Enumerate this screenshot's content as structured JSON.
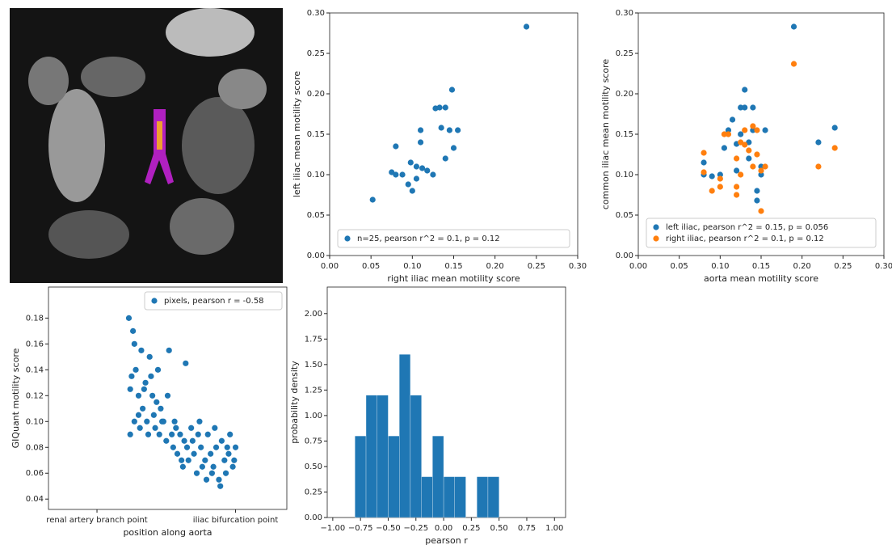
{
  "chart_data": [
    {
      "type": "scatter",
      "x_label": "right iliac mean motility score",
      "y_label": "left iliac mean motility score",
      "xlim": [
        0,
        0.3
      ],
      "ylim": [
        0,
        0.3
      ],
      "xticks": [
        {
          "value": 0,
          "label": "0.00"
        },
        0.05,
        {
          "value": 0.1,
          "label": "0.10"
        },
        0.15,
        {
          "value": 0.2,
          "label": "0.20"
        },
        0.25,
        {
          "value": 0.3,
          "label": "0.30"
        }
      ],
      "yticks": [
        {
          "value": 0,
          "label": "0.00"
        },
        0.05,
        {
          "value": 0.1,
          "label": "0.10"
        },
        0.15,
        {
          "value": 0.2,
          "label": "0.20"
        },
        0.25,
        {
          "value": 0.3,
          "label": "0.30"
        }
      ],
      "legend": "lower right",
      "series": [
        {
          "name": "n=25, pearson r^2 = 0.1, p = 0.12",
          "color": "#1f77b4",
          "x": [
            0.052,
            0.08,
            0.075,
            0.08,
            0.088,
            0.095,
            0.098,
            0.1,
            0.105,
            0.105,
            0.11,
            0.11,
            0.112,
            0.118,
            0.125,
            0.128,
            0.133,
            0.135,
            0.14,
            0.14,
            0.145,
            0.148,
            0.15,
            0.155,
            0.238
          ],
          "values": [
            0.069,
            0.135,
            0.103,
            0.1,
            0.1,
            0.088,
            0.115,
            0.08,
            0.11,
            0.095,
            0.14,
            0.155,
            0.108,
            0.105,
            0.1,
            0.182,
            0.183,
            0.158,
            0.183,
            0.12,
            0.155,
            0.205,
            0.133,
            0.155,
            0.283
          ]
        }
      ]
    },
    {
      "type": "scatter",
      "x_label": "aorta mean motility score",
      "y_label": "common iliac mean motility score",
      "xlim": [
        0,
        0.3
      ],
      "ylim": [
        0,
        0.3
      ],
      "xticks": [
        {
          "value": 0,
          "label": "0.00"
        },
        0.05,
        {
          "value": 0.1,
          "label": "0.10"
        },
        0.15,
        {
          "value": 0.2,
          "label": "0.20"
        },
        0.25,
        {
          "value": 0.3,
          "label": "0.30"
        }
      ],
      "yticks": [
        {
          "value": 0,
          "label": "0.00"
        },
        0.05,
        {
          "value": 0.1,
          "label": "0.10"
        },
        0.15,
        {
          "value": 0.2,
          "label": "0.20"
        },
        0.25,
        {
          "value": 0.3,
          "label": "0.30"
        }
      ],
      "legend": "lower right",
      "series": [
        {
          "name": "left iliac, pearson r^2 = 0.15, p = 0.056",
          "color": "#1f77b4",
          "x": [
            0.08,
            0.08,
            0.09,
            0.1,
            0.105,
            0.11,
            0.115,
            0.12,
            0.12,
            0.125,
            0.125,
            0.13,
            0.13,
            0.135,
            0.135,
            0.14,
            0.14,
            0.145,
            0.145,
            0.15,
            0.15,
            0.155,
            0.19,
            0.22,
            0.24
          ],
          "values": [
            0.115,
            0.1,
            0.098,
            0.1,
            0.133,
            0.155,
            0.168,
            0.105,
            0.138,
            0.183,
            0.15,
            0.205,
            0.183,
            0.12,
            0.14,
            0.183,
            0.155,
            0.08,
            0.068,
            0.11,
            0.1,
            0.155,
            0.283,
            0.14,
            0.158
          ]
        },
        {
          "name": "right iliac, pearson r^2 = 0.1, p = 0.12",
          "color": "#ff7f0e",
          "x": [
            0.08,
            0.08,
            0.09,
            0.1,
            0.1,
            0.105,
            0.11,
            0.12,
            0.12,
            0.12,
            0.125,
            0.125,
            0.13,
            0.13,
            0.135,
            0.14,
            0.14,
            0.145,
            0.145,
            0.15,
            0.15,
            0.155,
            0.19,
            0.22,
            0.24
          ],
          "values": [
            0.127,
            0.103,
            0.08,
            0.095,
            0.085,
            0.15,
            0.15,
            0.075,
            0.085,
            0.12,
            0.1,
            0.14,
            0.137,
            0.155,
            0.13,
            0.16,
            0.11,
            0.155,
            0.125,
            0.055,
            0.105,
            0.11,
            0.237,
            0.11,
            0.133
          ]
        }
      ]
    },
    {
      "type": "scatter",
      "x_label": "position along aorta",
      "y_label": "GIQuant motility score",
      "xlim": [
        -0.35,
        1.37
      ],
      "ylim": [
        0.032,
        0.204
      ],
      "xticks": [
        {
          "value": 0,
          "label": "renal artery branch point"
        },
        {
          "value": 1,
          "label": "iliac bifurcation point"
        }
      ],
      "yticks": [
        0.04,
        0.06,
        0.08,
        {
          "value": 0.1,
          "label": "0.10"
        },
        0.12,
        0.14,
        0.16,
        0.18
      ],
      "legend": "upper right",
      "series": [
        {
          "name": "pixels, pearson r = -0.58",
          "color": "#1f77b4",
          "x": [
            0.23,
            0.24,
            0.25,
            0.26,
            0.27,
            0.28,
            0.3,
            0.31,
            0.32,
            0.33,
            0.35,
            0.36,
            0.37,
            0.38,
            0.4,
            0.41,
            0.42,
            0.44,
            0.45,
            0.46,
            0.48,
            0.5,
            0.52,
            0.54,
            0.55,
            0.56,
            0.58,
            0.6,
            0.62,
            0.63,
            0.65,
            0.66,
            0.68,
            0.7,
            0.72,
            0.73,
            0.75,
            0.76,
            0.78,
            0.8,
            0.82,
            0.83,
            0.85,
            0.86,
            0.88,
            0.9,
            0.92,
            0.93,
            0.95,
            0.96,
            0.98,
            1.0,
            0.24,
            0.27,
            0.3,
            0.34,
            0.39,
            0.43,
            0.47,
            0.51,
            0.57,
            0.61,
            0.64,
            0.69,
            0.74,
            0.79,
            0.84,
            0.89,
            0.94,
            0.99
          ],
          "values": [
            0.18,
            0.09,
            0.135,
            0.17,
            0.1,
            0.14,
            0.12,
            0.095,
            0.155,
            0.11,
            0.13,
            0.1,
            0.09,
            0.15,
            0.12,
            0.105,
            0.095,
            0.14,
            0.09,
            0.11,
            0.1,
            0.085,
            0.155,
            0.09,
            0.08,
            0.1,
            0.075,
            0.09,
            0.065,
            0.085,
            0.08,
            0.07,
            0.095,
            0.075,
            0.06,
            0.09,
            0.08,
            0.065,
            0.07,
            0.09,
            0.075,
            0.06,
            0.095,
            0.08,
            0.055,
            0.085,
            0.07,
            0.06,
            0.075,
            0.09,
            0.065,
            0.08,
            0.125,
            0.16,
            0.105,
            0.125,
            0.135,
            0.115,
            0.1,
            0.12,
            0.095,
            0.07,
            0.145,
            0.085,
            0.1,
            0.055,
            0.065,
            0.05,
            0.08,
            0.07
          ]
        }
      ]
    },
    {
      "type": "histogram",
      "x_label": "pearson r",
      "y_label": "probability density",
      "color": "#1f77b4",
      "xlim": [
        -1.05,
        1.1
      ],
      "ylim": [
        0,
        2.26
      ],
      "xticks": [
        {
          "value": -1,
          "label": "−1.00"
        },
        {
          "value": -0.75,
          "label": "−0.75"
        },
        {
          "value": -0.5,
          "label": "−0.50"
        },
        {
          "value": -0.25,
          "label": "−0.25"
        },
        {
          "value": 0,
          "label": "0.00"
        },
        0.25,
        {
          "value": 0.5,
          "label": "0.50"
        },
        0.75,
        {
          "value": 1,
          "label": "1.00"
        }
      ],
      "yticks": [
        {
          "value": 0,
          "label": "0.00"
        },
        0.25,
        {
          "value": 0.5,
          "label": "0.50"
        },
        0.75,
        {
          "value": 1,
          "label": "1.00"
        },
        1.25,
        {
          "value": 1.5,
          "label": "1.50"
        },
        1.75,
        {
          "value": 2,
          "label": "2.00"
        }
      ],
      "bins": [
        -0.8,
        -0.7,
        -0.6,
        -0.5,
        -0.4,
        -0.3,
        -0.2,
        -0.1,
        0,
        0.1,
        0.2,
        0.3,
        0.4,
        0.5
      ],
      "values": [
        0.8,
        1.2,
        1.2,
        0.8,
        1.6,
        1.2,
        0.4,
        0.8,
        0.4,
        0.4,
        0,
        0.4,
        0.4
      ]
    }
  ]
}
